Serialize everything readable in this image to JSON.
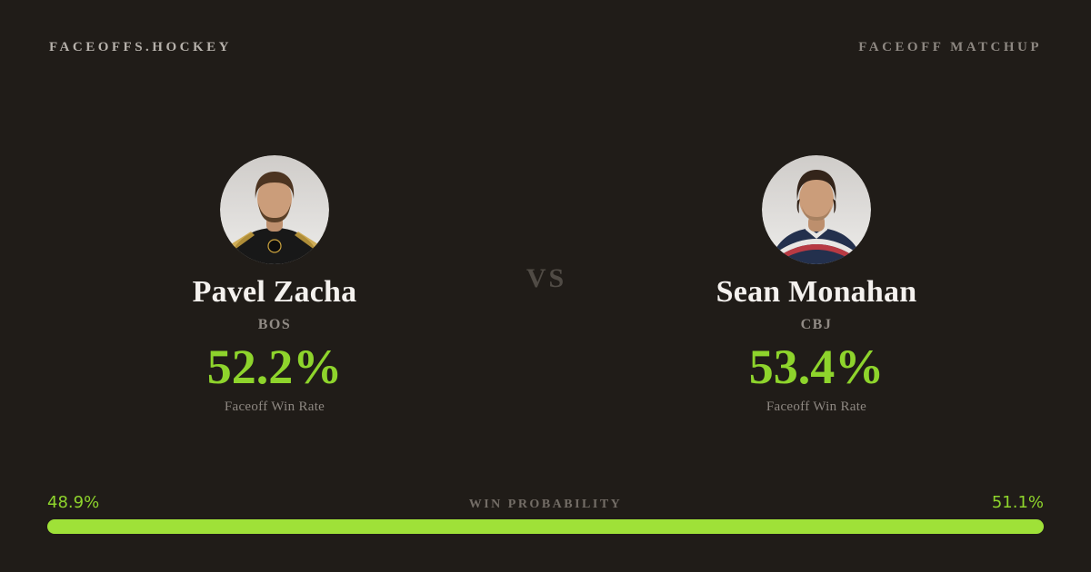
{
  "header": {
    "brand": "FACEOFFS.HOCKEY",
    "page_label": "FACEOFF MATCHUP"
  },
  "matchup": {
    "vs_label": "VS",
    "players": [
      {
        "name": "Pavel Zacha",
        "team": "BOS",
        "win_rate": "52.2%",
        "stat_label": "Faceoff Win Rate",
        "avatar_icon": "player-headshot-dark-jersey"
      },
      {
        "name": "Sean Monahan",
        "team": "CBJ",
        "win_rate": "53.4%",
        "stat_label": "Faceoff Win Rate",
        "avatar_icon": "player-headshot-navy-jersey"
      }
    ]
  },
  "win_probability": {
    "label": "WIN PROBABILITY",
    "left_value": "48.9%",
    "right_value": "51.1%",
    "left_pct": 48.9,
    "right_pct": 51.1
  },
  "colors": {
    "background": "#201c18",
    "accent_green_text": "#8ed42c",
    "accent_green_bar": "#9fe138",
    "name_white": "#f4f1ee",
    "muted_gray": "#8d8781",
    "vs_gray": "#504b45"
  }
}
